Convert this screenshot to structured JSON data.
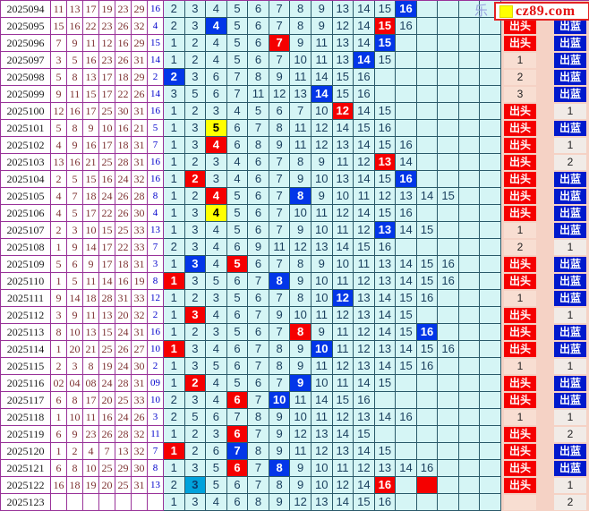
{
  "watermark": {
    "prefix_char": "乐",
    "site": "cz89.com",
    "square_color": "#ffff00"
  },
  "right_labels": {
    "chutou": "出头",
    "chulan": "出蓝"
  },
  "colors": {
    "table_border": "#993399",
    "grid_border": "#2a5a6a",
    "grid_bg": "#d5f5f5",
    "blue_highlight": "#0336e8",
    "red_highlight": "#f50000",
    "yellow_highlight": "#ffff00",
    "cyan_highlight": "#00a2dc",
    "chutou_red": "#f50000",
    "chulan_blue": "#0019cc",
    "right_bg": "#f5d2c5",
    "red_ball_text": "#7c3030",
    "blue_ball_text": "#0000cc"
  },
  "rows": [
    {
      "period": "2025094",
      "reds": [
        "11",
        "13",
        "17",
        "19",
        "23",
        "29"
      ],
      "blue": "16",
      "grid": "2,3,4,5,6,7,8,9,13,14,15,16:b",
      "chutou": "",
      "chulan": ""
    },
    {
      "period": "2025095",
      "reds": [
        "15",
        "16",
        "22",
        "23",
        "26",
        "32"
      ],
      "blue": "4",
      "grid": "2,3,4:b,5,6,7,8,9,12,14,15:r,16",
      "chutou": "出头",
      "chulan": "出蓝"
    },
    {
      "period": "2025096",
      "reds": [
        "7",
        "9",
        "11",
        "12",
        "16",
        "29"
      ],
      "blue": "15",
      "grid": "1,2,4,5,6,7:r,9,11,13,14,15:b",
      "chutou": "出头",
      "chulan": "出蓝"
    },
    {
      "period": "2025097",
      "reds": [
        "3",
        "5",
        "16",
        "23",
        "26",
        "31"
      ],
      "blue": "14",
      "grid": "1,2,4,5,6,7,10,11,13,14:b,15",
      "chutou": "1",
      "chulan": "出蓝"
    },
    {
      "period": "2025098",
      "reds": [
        "5",
        "8",
        "13",
        "17",
        "18",
        "29"
      ],
      "blue": "2",
      "grid": "2:b,3,6,7,8,9,11,14,15,16",
      "chutou": "2",
      "chulan": "出蓝"
    },
    {
      "period": "2025099",
      "reds": [
        "9",
        "11",
        "15",
        "17",
        "22",
        "26"
      ],
      "blue": "14",
      "grid": "3,5,6,7,11,12,13,14:b,15,16",
      "chutou": "3",
      "chulan": "出蓝"
    },
    {
      "period": "2025100",
      "reds": [
        "12",
        "16",
        "17",
        "25",
        "30",
        "31"
      ],
      "blue": "16",
      "grid": "1,2,3,4,5,6,7,10,12:r,14,15",
      "chutou": "出头",
      "chulan": "1"
    },
    {
      "period": "2025101",
      "reds": [
        "5",
        "8",
        "9",
        "10",
        "16",
        "21"
      ],
      "blue": "5",
      "grid": "1,3,5:y,6,7,8,11,12,14,15,16",
      "chutou": "出头",
      "chulan": "出蓝"
    },
    {
      "period": "2025102",
      "reds": [
        "4",
        "9",
        "16",
        "17",
        "18",
        "31"
      ],
      "blue": "7",
      "grid": "1,3,4:r,6,8,9,11,12,13,14,15,16",
      "chutou": "出头",
      "chulan": "1"
    },
    {
      "period": "2025103",
      "reds": [
        "13",
        "16",
        "21",
        "25",
        "28",
        "31"
      ],
      "blue": "16",
      "grid": "1,2,3,4,6,7,8,9,11,12,13:r,14",
      "chutou": "出头",
      "chulan": "2"
    },
    {
      "period": "2025104",
      "reds": [
        "2",
        "5",
        "15",
        "16",
        "24",
        "32"
      ],
      "blue": "16",
      "grid": "1,2:r,3,4,6,7,9,10,13,14,15,16:b",
      "chutou": "出头",
      "chulan": "出蓝"
    },
    {
      "period": "2025105",
      "reds": [
        "4",
        "7",
        "18",
        "24",
        "26",
        "28"
      ],
      "blue": "8",
      "grid": "1,2,4:r,5,6,7,8:b,9,10,11,12,13,14,15",
      "chutou": "出头",
      "chulan": "出蓝"
    },
    {
      "period": "2025106",
      "reds": [
        "4",
        "5",
        "17",
        "22",
        "26",
        "30"
      ],
      "blue": "4",
      "grid": "1,3,4:y,5,6,7,10,11,12,14,15,16",
      "chutou": "出头",
      "chulan": "出蓝"
    },
    {
      "period": "2025107",
      "reds": [
        "2",
        "3",
        "10",
        "15",
        "25",
        "33"
      ],
      "blue": "13",
      "grid": "1,3,4,5,6,7,9,10,11,12,13:b,14,15",
      "chutou": "1",
      "chulan": "出蓝"
    },
    {
      "period": "2025108",
      "reds": [
        "1",
        "9",
        "14",
        "17",
        "22",
        "33"
      ],
      "blue": "7",
      "grid": "2,3,4,6,9,11,12,13,14,15,16",
      "chutou": "2",
      "chulan": "1"
    },
    {
      "period": "2025109",
      "reds": [
        "5",
        "6",
        "9",
        "17",
        "18",
        "31"
      ],
      "blue": "3",
      "grid": "1,3:b,4,5:r,6,7,8,9,10,11,13,14,15,16",
      "chutou": "出头",
      "chulan": "出蓝"
    },
    {
      "period": "2025110",
      "reds": [
        "1",
        "5",
        "11",
        "14",
        "16",
        "19"
      ],
      "blue": "8",
      "grid": "1:r,3,5,6,7,8:b,9,10,11,12,13,14,15,16",
      "chutou": "出头",
      "chulan": "出蓝"
    },
    {
      "period": "2025111",
      "reds": [
        "9",
        "14",
        "18",
        "28",
        "31",
        "33"
      ],
      "blue": "12",
      "grid": "1,2,3,5,6,7,8,10,12:b,13,14,15,16",
      "chutou": "1",
      "chulan": "出蓝"
    },
    {
      "period": "2025112",
      "reds": [
        "3",
        "9",
        "11",
        "13",
        "20",
        "32"
      ],
      "blue": "2",
      "grid": "1,3:r,4,6,7,9,10,11,12,13,14,15",
      "chutou": "出头",
      "chulan": "1"
    },
    {
      "period": "2025113",
      "reds": [
        "8",
        "10",
        "13",
        "15",
        "24",
        "31"
      ],
      "blue": "16",
      "grid": "1,2,3,5,6,7,8:r,9,11,12,14,15,16:b",
      "chutou": "出头",
      "chulan": "出蓝"
    },
    {
      "period": "2025114",
      "reds": [
        "1",
        "20",
        "21",
        "25",
        "26",
        "27"
      ],
      "blue": "10",
      "grid": "1:r,3,4,6,7,8,9,10:b,11,12,13,14,15,16",
      "chutou": "出头",
      "chulan": "出蓝"
    },
    {
      "period": "2025115",
      "reds": [
        "2",
        "3",
        "8",
        "19",
        "24",
        "30"
      ],
      "blue": "2",
      "grid": "1,3,5,6,7,8,9,11,12,13,14,15,16",
      "chutou": "1",
      "chulan": "1"
    },
    {
      "period": "2025116",
      "reds": [
        "02",
        "04",
        "08",
        "24",
        "28",
        "31"
      ],
      "blue": "09",
      "grid": "1,2:r,4,5,6,7,9:b,10,11,14,15",
      "chutou": "出头",
      "chulan": "出蓝"
    },
    {
      "period": "2025117",
      "reds": [
        "6",
        "8",
        "17",
        "20",
        "25",
        "33"
      ],
      "blue": "10",
      "grid": "2,3,4,6:r,7,10:b,11,14,15,16",
      "chutou": "出头",
      "chulan": "出蓝"
    },
    {
      "period": "2025118",
      "reds": [
        "1",
        "10",
        "11",
        "16",
        "24",
        "26"
      ],
      "blue": "3",
      "grid": "2,5,6,7,8,9,10,11,12,13,14,16",
      "chutou": "1",
      "chulan": "1"
    },
    {
      "period": "2025119",
      "reds": [
        "6",
        "9",
        "23",
        "26",
        "28",
        "32"
      ],
      "blue": "11",
      "grid": "1,2,3,6:r,7,9,12,13,14,15",
      "chutou": "出头",
      "chulan": "2"
    },
    {
      "period": "2025120",
      "reds": [
        "1",
        "2",
        "4",
        "7",
        "13",
        "32"
      ],
      "blue": "7",
      "grid": "1:r,2,6,7:b,8,9,11,12,13,14,15",
      "chutou": "出头",
      "chulan": "出蓝"
    },
    {
      "period": "2025121",
      "reds": [
        "6",
        "8",
        "10",
        "25",
        "29",
        "30"
      ],
      "blue": "8",
      "grid": "1,3,5,6:r,7,8:b,9,10,11,12,13,14,16",
      "chutou": "出头",
      "chulan": "出蓝"
    },
    {
      "period": "2025122",
      "reds": [
        "16",
        "18",
        "19",
        "20",
        "25",
        "31"
      ],
      "blue": "13",
      "grid": "2,3:c,5,6,7,8,9,10,12,14,16:r,,:r",
      "chutou": "出头",
      "chulan": "1"
    },
    {
      "period": "2025123",
      "reds": [
        "",
        "",
        "",
        "",
        "",
        ""
      ],
      "blue": "",
      "grid": "1,3,4,6,8,9,12,13,14,15,16",
      "chutou": "",
      "chulan": "2"
    }
  ]
}
